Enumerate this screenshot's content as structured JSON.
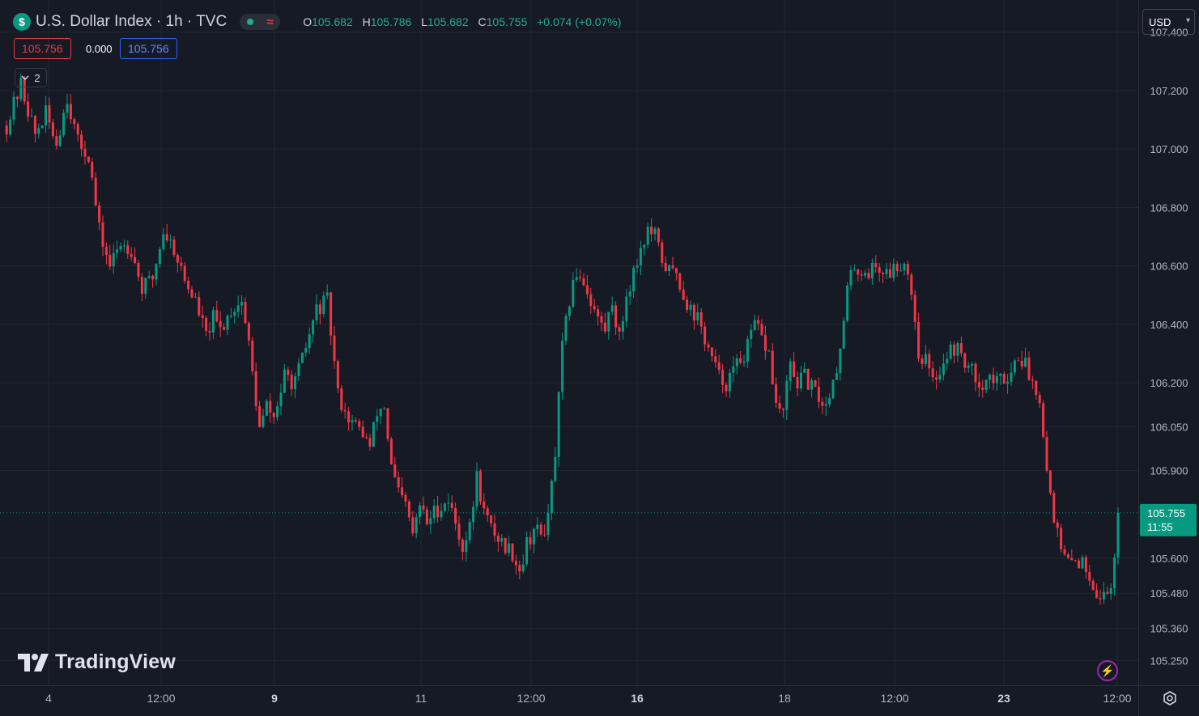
{
  "header": {
    "symbol_icon": "$",
    "title": "U.S. Dollar Index · 1h · TVC",
    "status_icon_wave": "≈",
    "ohlc": {
      "o_label": "O",
      "o_value": "105.682",
      "h_label": "H",
      "h_value": "105.786",
      "l_label": "L",
      "l_value": "105.682",
      "c_label": "C",
      "c_value": "105.755",
      "change": "+0.074 (+0.07%)"
    },
    "bid": "105.756",
    "spread": "0.000",
    "ask": "105.756",
    "indicators_count": "2",
    "currency": "USD"
  },
  "branding": {
    "logo_text": "TradingView"
  },
  "colors": {
    "background": "#161a25",
    "grid": "#232631",
    "up": "#089981",
    "down": "#f23645",
    "text": "#b2b5be",
    "price_label_bg": "#089981"
  },
  "icons": {
    "symbol": "dollar-icon",
    "collapse": "chevron-down-icon",
    "currency": "chevron-down-icon",
    "alert": "lightning-icon",
    "settings": "gear-icon",
    "logo": "tradingview-logo-icon"
  },
  "chart_data": {
    "type": "candlestick",
    "title": "U.S. Dollar Index · 1h · TVC",
    "x_tick_labels": [
      "4",
      "12:00",
      "9",
      "11",
      "12:00",
      "16",
      "18",
      "12:00",
      "23",
      "12:00"
    ],
    "x_tick_bold": [
      false,
      false,
      true,
      false,
      false,
      true,
      false,
      false,
      true,
      false
    ],
    "y_tick_labels": [
      "107.400",
      "107.200",
      "107.000",
      "106.800",
      "106.600",
      "106.400",
      "106.200",
      "106.050",
      "105.900",
      "105.600",
      "105.480",
      "105.360",
      "105.250"
    ],
    "y_ticks": [
      107.4,
      107.2,
      107.0,
      106.8,
      106.6,
      106.4,
      106.2,
      106.05,
      105.9,
      105.6,
      105.48,
      105.36,
      105.25
    ],
    "ylim": [
      105.165,
      107.51
    ],
    "last_price": {
      "value": 105.755,
      "label": "105.755",
      "countdown": "11:55"
    },
    "grid": true,
    "path_points": [
      [
        0,
        107.08
      ],
      [
        4,
        107.22
      ],
      [
        8,
        107.05
      ],
      [
        11,
        107.12
      ],
      [
        14,
        107.02
      ],
      [
        17,
        107.18
      ],
      [
        20,
        107.02
      ],
      [
        23,
        106.98
      ],
      [
        26,
        106.72
      ],
      [
        29,
        106.6
      ],
      [
        32,
        106.68
      ],
      [
        35,
        106.66
      ],
      [
        38,
        106.52
      ],
      [
        41,
        106.56
      ],
      [
        44,
        106.72
      ],
      [
        47,
        106.66
      ],
      [
        50,
        106.55
      ],
      [
        53,
        106.48
      ],
      [
        56,
        106.36
      ],
      [
        58,
        106.42
      ],
      [
        60,
        106.38
      ],
      [
        63,
        106.45
      ],
      [
        66,
        106.48
      ],
      [
        68,
        106.33
      ],
      [
        71,
        106.04
      ],
      [
        73,
        106.12
      ],
      [
        75,
        106.08
      ],
      [
        78,
        106.22
      ],
      [
        81,
        106.2
      ],
      [
        84,
        106.32
      ],
      [
        87,
        106.45
      ],
      [
        90,
        106.48
      ],
      [
        93,
        106.16
      ],
      [
        96,
        106.08
      ],
      [
        98,
        106.05
      ],
      [
        100,
        106.03
      ],
      [
        102,
        105.98
      ],
      [
        104,
        106.1
      ],
      [
        106,
        106.12
      ],
      [
        108,
        105.91
      ],
      [
        110,
        105.82
      ],
      [
        112,
        105.78
      ],
      [
        114,
        105.68
      ],
      [
        116,
        105.78
      ],
      [
        118,
        105.72
      ],
      [
        120,
        105.76
      ],
      [
        122,
        105.78
      ],
      [
        124,
        105.8
      ],
      [
        126,
        105.72
      ],
      [
        128,
        105.64
      ],
      [
        130,
        105.7
      ],
      [
        132,
        105.88
      ],
      [
        134,
        105.76
      ],
      [
        136,
        105.7
      ],
      [
        138,
        105.67
      ],
      [
        140,
        105.64
      ],
      [
        142,
        105.62
      ],
      [
        144,
        105.56
      ],
      [
        146,
        105.65
      ],
      [
        148,
        105.7
      ],
      [
        150,
        105.68
      ],
      [
        152,
        105.73
      ],
      [
        154,
        105.96
      ],
      [
        156,
        106.32
      ],
      [
        158,
        106.48
      ],
      [
        160,
        106.58
      ],
      [
        162,
        106.55
      ],
      [
        164,
        106.48
      ],
      [
        166,
        106.42
      ],
      [
        168,
        106.38
      ],
      [
        170,
        106.48
      ],
      [
        172,
        106.35
      ],
      [
        174,
        106.5
      ],
      [
        176,
        106.58
      ],
      [
        178,
        106.66
      ],
      [
        180,
        106.72
      ],
      [
        182,
        106.7
      ],
      [
        184,
        106.62
      ],
      [
        186,
        106.58
      ],
      [
        188,
        106.58
      ],
      [
        190,
        106.5
      ],
      [
        192,
        106.45
      ],
      [
        194,
        106.42
      ],
      [
        196,
        106.35
      ],
      [
        198,
        106.28
      ],
      [
        200,
        106.22
      ],
      [
        202,
        106.2
      ],
      [
        204,
        106.24
      ],
      [
        206,
        106.28
      ],
      [
        208,
        106.32
      ],
      [
        210,
        106.4
      ],
      [
        212,
        106.35
      ],
      [
        214,
        106.3
      ],
      [
        216,
        106.12
      ],
      [
        218,
        106.1
      ],
      [
        220,
        106.26
      ],
      [
        222,
        106.2
      ],
      [
        224,
        106.22
      ],
      [
        226,
        106.18
      ],
      [
        228,
        106.15
      ],
      [
        230,
        106.12
      ],
      [
        232,
        106.22
      ],
      [
        234,
        106.3
      ],
      [
        236,
        106.52
      ],
      [
        238,
        106.6
      ],
      [
        240,
        106.58
      ],
      [
        242,
        106.58
      ],
      [
        244,
        106.6
      ],
      [
        246,
        106.58
      ],
      [
        248,
        106.58
      ],
      [
        250,
        106.6
      ],
      [
        252,
        106.62
      ],
      [
        254,
        106.52
      ],
      [
        256,
        106.3
      ],
      [
        258,
        106.28
      ],
      [
        260,
        106.2
      ],
      [
        262,
        106.25
      ],
      [
        264,
        106.3
      ],
      [
        266,
        106.32
      ],
      [
        268,
        106.3
      ],
      [
        270,
        106.25
      ],
      [
        272,
        106.22
      ],
      [
        274,
        106.2
      ],
      [
        276,
        106.22
      ],
      [
        278,
        106.2
      ],
      [
        280,
        106.22
      ],
      [
        282,
        106.24
      ],
      [
        284,
        106.3
      ],
      [
        286,
        106.26
      ],
      [
        288,
        106.2
      ],
      [
        290,
        106.16
      ],
      [
        292,
        105.9
      ],
      [
        294,
        105.75
      ],
      [
        296,
        105.62
      ],
      [
        298,
        105.58
      ],
      [
        300,
        105.6
      ],
      [
        302,
        105.58
      ],
      [
        304,
        105.55
      ],
      [
        306,
        105.48
      ],
      [
        308,
        105.47
      ],
      [
        310,
        105.5
      ],
      [
        311,
        105.62
      ],
      [
        312,
        105.755
      ]
    ]
  }
}
